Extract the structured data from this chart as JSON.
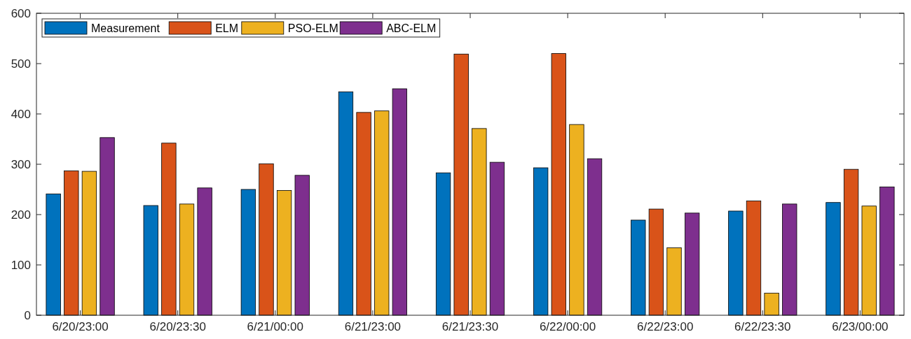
{
  "chart_data": {
    "type": "bar",
    "categories": [
      "6/20/23:00",
      "6/20/23:30",
      "6/21/00:00",
      "6/21/23:00",
      "6/21/23:30",
      "6/22/00:00",
      "6/22/23:00",
      "6/22/23:30",
      "6/23/00:00"
    ],
    "series": [
      {
        "name": "Measurement",
        "color": "#0072bd",
        "values": [
          241,
          218,
          250,
          444,
          283,
          293,
          189,
          207,
          224
        ]
      },
      {
        "name": "ELM",
        "color": "#d95319",
        "values": [
          287,
          342,
          301,
          403,
          519,
          520,
          211,
          227,
          290
        ]
      },
      {
        "name": "PSO-ELM",
        "color": "#edb120",
        "values": [
          286,
          221,
          248,
          406,
          371,
          379,
          134,
          44,
          217
        ]
      },
      {
        "name": "ABC-ELM",
        "color": "#7e2f8e",
        "values": [
          353,
          253,
          278,
          450,
          304,
          311,
          203,
          221,
          255
        ]
      }
    ],
    "ylim": [
      0,
      600
    ],
    "yticks": [
      0,
      100,
      200,
      300,
      400,
      500,
      600
    ],
    "legend": "top left"
  }
}
